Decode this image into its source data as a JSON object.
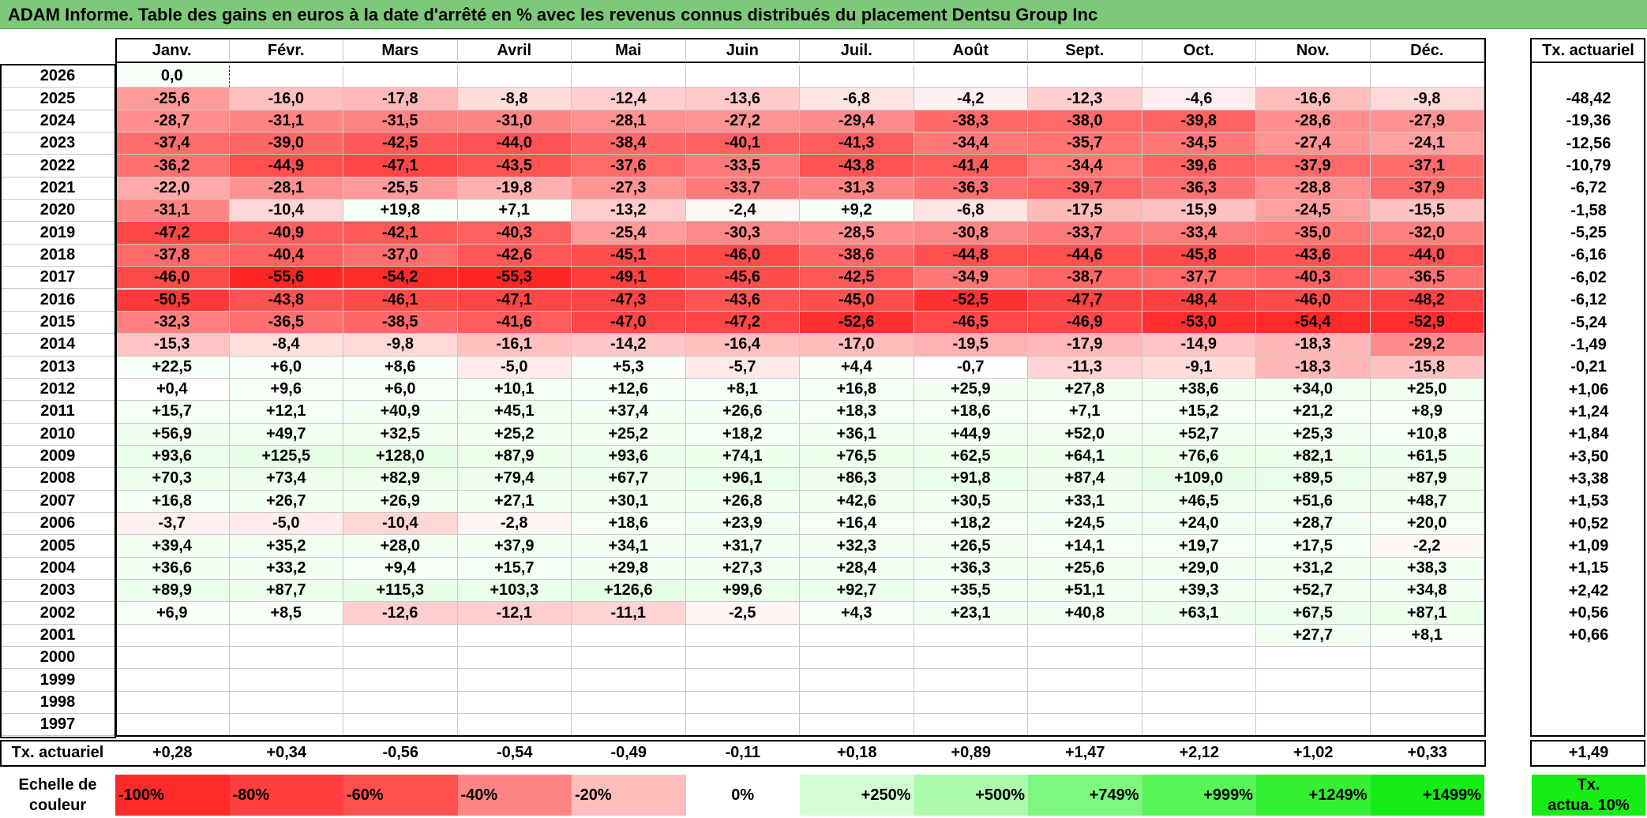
{
  "title": "ADAM Informe. Table des gains en euros à la date d'arrêté en % avec les revenus connus distribués du placement Dentsu Group Inc",
  "months": [
    "Janv.",
    "Févr.",
    "Mars",
    "Avril",
    "Mai",
    "Juin",
    "Juil.",
    "Août",
    "Sept.",
    "Oct.",
    "Nov.",
    "Déc."
  ],
  "rate_header": "Tx. actuariel",
  "rows": [
    {
      "year": "2026",
      "values": [
        "0,0",
        "",
        "",
        "",
        "",
        "",
        "",
        "",
        "",
        "",
        "",
        ""
      ],
      "rate": ""
    },
    {
      "year": "2025",
      "values": [
        "-25,6",
        "-16,0",
        "-17,8",
        "-8,8",
        "-12,4",
        "-13,6",
        "-6,8",
        "-4,2",
        "-12,3",
        "-4,6",
        "-16,6",
        "-9,8"
      ],
      "rate": "-48,42"
    },
    {
      "year": "2024",
      "values": [
        "-28,7",
        "-31,1",
        "-31,5",
        "-31,0",
        "-28,1",
        "-27,2",
        "-29,4",
        "-38,3",
        "-38,0",
        "-39,8",
        "-28,6",
        "-27,9"
      ],
      "rate": "-19,36"
    },
    {
      "year": "2023",
      "values": [
        "-37,4",
        "-39,0",
        "-42,5",
        "-44,0",
        "-38,4",
        "-40,1",
        "-41,3",
        "-34,4",
        "-35,7",
        "-34,5",
        "-27,4",
        "-24,1"
      ],
      "rate": "-12,56"
    },
    {
      "year": "2022",
      "values": [
        "-36,2",
        "-44,9",
        "-47,1",
        "-43,5",
        "-37,6",
        "-33,5",
        "-43,8",
        "-41,4",
        "-34,4",
        "-39,6",
        "-37,9",
        "-37,1"
      ],
      "rate": "-10,79"
    },
    {
      "year": "2021",
      "values": [
        "-22,0",
        "-28,1",
        "-25,5",
        "-19,8",
        "-27,3",
        "-33,7",
        "-31,3",
        "-36,3",
        "-39,7",
        "-36,3",
        "-28,8",
        "-37,9"
      ],
      "rate": "-6,72"
    },
    {
      "year": "2020",
      "values": [
        "-31,1",
        "-10,4",
        "+19,8",
        "+7,1",
        "-13,2",
        "-2,4",
        "+9,2",
        "-6,8",
        "-17,5",
        "-15,9",
        "-24,5",
        "-15,5"
      ],
      "rate": "-1,58"
    },
    {
      "year": "2019",
      "values": [
        "-47,2",
        "-40,9",
        "-42,1",
        "-40,3",
        "-25,4",
        "-30,3",
        "-28,5",
        "-30,8",
        "-33,7",
        "-33,4",
        "-35,0",
        "-32,0"
      ],
      "rate": "-5,25"
    },
    {
      "year": "2018",
      "values": [
        "-37,8",
        "-40,4",
        "-37,0",
        "-42,6",
        "-45,1",
        "-46,0",
        "-38,6",
        "-44,8",
        "-44,6",
        "-45,8",
        "-43,6",
        "-44,0"
      ],
      "rate": "-6,16"
    },
    {
      "year": "2017",
      "values": [
        "-46,0",
        "-55,6",
        "-54,2",
        "-55,3",
        "-49,1",
        "-45,6",
        "-42,5",
        "-34,9",
        "-38,7",
        "-37,7",
        "-40,3",
        "-36,5"
      ],
      "rate": "-6,02"
    },
    {
      "year": "2016",
      "values": [
        "-50,5",
        "-43,8",
        "-46,1",
        "-47,1",
        "-47,3",
        "-43,6",
        "-45,0",
        "-52,5",
        "-47,7",
        "-48,4",
        "-46,0",
        "-48,2"
      ],
      "rate": "-6,12"
    },
    {
      "year": "2015",
      "values": [
        "-32,3",
        "-36,5",
        "-38,5",
        "-41,6",
        "-47,0",
        "-47,2",
        "-52,6",
        "-46,5",
        "-46,9",
        "-53,0",
        "-54,4",
        "-52,9"
      ],
      "rate": "-5,24"
    },
    {
      "year": "2014",
      "values": [
        "-15,3",
        "-8,4",
        "-9,8",
        "-16,1",
        "-14,2",
        "-16,4",
        "-17,0",
        "-19,5",
        "-17,9",
        "-14,9",
        "-18,3",
        "-29,2"
      ],
      "rate": "-1,49"
    },
    {
      "year": "2013",
      "values": [
        "+22,5",
        "+6,0",
        "+8,6",
        "-5,0",
        "+5,3",
        "-5,7",
        "+4,4",
        "-0,7",
        "-11,3",
        "-9,1",
        "-18,3",
        "-15,8"
      ],
      "rate": "-0,21"
    },
    {
      "year": "2012",
      "values": [
        "+0,4",
        "+9,6",
        "+6,0",
        "+10,1",
        "+12,6",
        "+8,1",
        "+16,8",
        "+25,9",
        "+27,8",
        "+38,6",
        "+34,0",
        "+25,0"
      ],
      "rate": "+1,06"
    },
    {
      "year": "2011",
      "values": [
        "+15,7",
        "+12,1",
        "+40,9",
        "+45,1",
        "+37,4",
        "+26,6",
        "+18,3",
        "+18,6",
        "+7,1",
        "+15,2",
        "+21,2",
        "+8,9"
      ],
      "rate": "+1,24"
    },
    {
      "year": "2010",
      "values": [
        "+56,9",
        "+49,7",
        "+32,5",
        "+25,2",
        "+25,2",
        "+18,2",
        "+36,1",
        "+44,9",
        "+52,0",
        "+52,7",
        "+25,3",
        "+10,8"
      ],
      "rate": "+1,84"
    },
    {
      "year": "2009",
      "values": [
        "+93,6",
        "+125,5",
        "+128,0",
        "+87,9",
        "+93,6",
        "+74,1",
        "+76,5",
        "+62,5",
        "+64,1",
        "+76,6",
        "+82,1",
        "+61,5"
      ],
      "rate": "+3,50"
    },
    {
      "year": "2008",
      "values": [
        "+70,3",
        "+73,4",
        "+82,9",
        "+79,4",
        "+67,7",
        "+96,1",
        "+86,3",
        "+91,8",
        "+87,4",
        "+109,0",
        "+89,5",
        "+87,9"
      ],
      "rate": "+3,38"
    },
    {
      "year": "2007",
      "values": [
        "+16,8",
        "+26,7",
        "+26,9",
        "+27,1",
        "+30,1",
        "+26,8",
        "+42,6",
        "+30,5",
        "+33,1",
        "+46,5",
        "+51,6",
        "+48,7"
      ],
      "rate": "+1,53"
    },
    {
      "year": "2006",
      "values": [
        "-3,7",
        "-5,0",
        "-10,4",
        "-2,8",
        "+18,6",
        "+23,9",
        "+16,4",
        "+18,2",
        "+24,5",
        "+24,0",
        "+28,7",
        "+20,0"
      ],
      "rate": "+0,52"
    },
    {
      "year": "2005",
      "values": [
        "+39,4",
        "+35,2",
        "+28,0",
        "+37,9",
        "+34,1",
        "+31,7",
        "+32,3",
        "+26,5",
        "+14,1",
        "+19,7",
        "+17,5",
        "-2,2"
      ],
      "rate": "+1,09"
    },
    {
      "year": "2004",
      "values": [
        "+36,6",
        "+33,2",
        "+9,4",
        "+15,7",
        "+29,8",
        "+27,3",
        "+28,4",
        "+36,3",
        "+25,6",
        "+29,0",
        "+31,2",
        "+38,3"
      ],
      "rate": "+1,15"
    },
    {
      "year": "2003",
      "values": [
        "+89,9",
        "+87,7",
        "+115,3",
        "+103,3",
        "+126,6",
        "+99,6",
        "+92,7",
        "+35,5",
        "+51,1",
        "+39,3",
        "+52,7",
        "+34,8"
      ],
      "rate": "+2,42"
    },
    {
      "year": "2002",
      "values": [
        "+6,9",
        "+8,5",
        "-12,6",
        "-12,1",
        "-11,1",
        "-2,5",
        "+4,3",
        "+23,1",
        "+40,8",
        "+63,1",
        "+67,5",
        "+87,1"
      ],
      "rate": "+0,56"
    },
    {
      "year": "2001",
      "values": [
        "",
        "",
        "",
        "",
        "",
        "",
        "",
        "",
        "",
        "",
        "+27,7",
        "+8,1"
      ],
      "rate": "+0,66"
    },
    {
      "year": "2000",
      "values": [
        "",
        "",
        "",
        "",
        "",
        "",
        "",
        "",
        "",
        "",
        "",
        ""
      ],
      "rate": ""
    },
    {
      "year": "1999",
      "values": [
        "",
        "",
        "",
        "",
        "",
        "",
        "",
        "",
        "",
        "",
        "",
        ""
      ],
      "rate": ""
    },
    {
      "year": "1998",
      "values": [
        "",
        "",
        "",
        "",
        "",
        "",
        "",
        "",
        "",
        "",
        "",
        ""
      ],
      "rate": ""
    },
    {
      "year": "1997",
      "values": [
        "",
        "",
        "",
        "",
        "",
        "",
        "",
        "",
        "",
        "",
        "",
        ""
      ],
      "rate": ""
    }
  ],
  "footer": {
    "label": "Tx. actuariel",
    "values": [
      "+0,28",
      "+0,34",
      "-0,56",
      "-0,54",
      "-0,49",
      "-0,11",
      "+0,18",
      "+0,89",
      "+1,47",
      "+2,12",
      "+1,02",
      "+0,33"
    ],
    "rate": "+1,49"
  },
  "legend": {
    "label_line1": "Echelle de",
    "label_line2": "couleur",
    "items": [
      {
        "text": "-100%",
        "color": "#ff2b2b",
        "align": "left"
      },
      {
        "text": "-80%",
        "color": "#ff3f3f",
        "align": "left"
      },
      {
        "text": "-60%",
        "color": "#ff5050",
        "align": "left"
      },
      {
        "text": "-40%",
        "color": "#ff8585",
        "align": "left"
      },
      {
        "text": "-20%",
        "color": "#ffbdbd",
        "align": "left"
      },
      {
        "text": "0%",
        "color": "#ffffff",
        "align": "center"
      },
      {
        "text": "+250%",
        "color": "#d4fcd4",
        "align": "right"
      },
      {
        "text": "+500%",
        "color": "#acfaac",
        "align": "right"
      },
      {
        "text": "+749%",
        "color": "#7ef77e",
        "align": "right"
      },
      {
        "text": "+999%",
        "color": "#58f558",
        "align": "right"
      },
      {
        "text": "+1249%",
        "color": "#33f033",
        "align": "right"
      },
      {
        "text": "+1499%",
        "color": "#16ec16",
        "align": "right"
      }
    ],
    "rate_line1": "Tx.",
    "rate_line2": "actua. 10%",
    "rate_color": "#16ec16"
  }
}
